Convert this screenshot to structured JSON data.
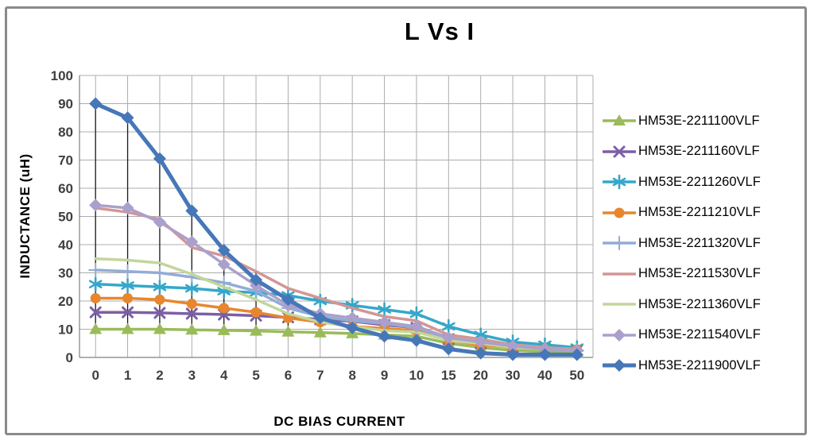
{
  "frame": {
    "border_color": "#8A8A8A",
    "background": "#FFFFFF"
  },
  "chart_data": {
    "type": "line",
    "title": "L Vs I",
    "xlabel": "DC BIAS CURRENT",
    "ylabel": "INDUCTANCE (uH)",
    "ylim": [
      0,
      100
    ],
    "y_ticks": [
      0,
      10,
      20,
      30,
      40,
      50,
      60,
      70,
      80,
      90,
      100
    ],
    "grid": "both",
    "high_low_lines": true,
    "legend_position": "right",
    "gridline_color": "#ACACAC",
    "axis_color": "#808080",
    "high_low_color": "#1A1A1A",
    "tick_label_color": "#3F3F3F",
    "categories": [
      "0",
      "1",
      "2",
      "3",
      "4",
      "5",
      "6",
      "7",
      "8",
      "9",
      "10",
      "15",
      "20",
      "30",
      "40",
      "50"
    ],
    "series": [
      {
        "name": "HM53E-2211100VLF",
        "color": "#9ABB59",
        "marker": "triangle",
        "line_width": 3.5,
        "values": [
          10,
          10,
          10,
          9.8,
          9.6,
          9.4,
          9.1,
          8.8,
          8.5,
          8,
          7.5,
          5,
          3.5,
          2.5,
          2,
          2
        ]
      },
      {
        "name": "HM53E-2211160VLF",
        "color": "#7C5FA6",
        "marker": "x",
        "line_width": 3.5,
        "values": [
          16,
          16,
          15.8,
          15.5,
          15.2,
          14.8,
          14.2,
          13.5,
          12.8,
          11.5,
          10.5,
          6.5,
          5,
          3.5,
          3,
          2.5
        ]
      },
      {
        "name": "HM53E-2211260VLF",
        "color": "#35A7C9",
        "marker": "asterisk",
        "line_width": 3.5,
        "values": [
          26,
          25.5,
          25,
          24.5,
          23.5,
          23,
          22,
          20,
          18.5,
          17,
          15.5,
          11,
          8,
          5.5,
          4.5,
          3.5
        ]
      },
      {
        "name": "HM53E-2211210VLF",
        "color": "#E8862E",
        "marker": "circle",
        "line_width": 3.5,
        "values": [
          21,
          21,
          20.5,
          19,
          17.5,
          16,
          14,
          12.5,
          11,
          10.3,
          9.5,
          6,
          4.5,
          3.5,
          3,
          2.8
        ]
      },
      {
        "name": "HM53E-2211320VLF",
        "color": "#92ACD5",
        "marker": "plus",
        "line_width": 3.5,
        "values": [
          31,
          30.5,
          30,
          28.5,
          26.5,
          23.5,
          17.5,
          14.5,
          13,
          12,
          10.5,
          6.5,
          5,
          3.5,
          3,
          2.5
        ]
      },
      {
        "name": "HM53E-2211530VLF",
        "color": "#D29694",
        "marker": "none",
        "line_width": 3.5,
        "values": [
          53,
          51.5,
          49,
          39,
          36,
          30.5,
          24.5,
          21,
          17.5,
          14.5,
          13,
          8,
          6.5,
          4.5,
          3.5,
          3
        ]
      },
      {
        "name": "HM53E-2211360VLF",
        "color": "#C3D69B",
        "marker": "none",
        "line_width": 3.5,
        "values": [
          35,
          34.5,
          33.5,
          29.5,
          25,
          20.5,
          15.5,
          12.5,
          11,
          9.5,
          9,
          6,
          5,
          3.5,
          3,
          2.5
        ]
      },
      {
        "name": "HM53E-2211540VLF",
        "color": "#ABA0CB",
        "marker": "diamond",
        "line_width": 3.5,
        "values": [
          54,
          53,
          48,
          41,
          33,
          25.5,
          18.5,
          15.5,
          14,
          12.5,
          11,
          7,
          5.5,
          4,
          3,
          2.5
        ]
      },
      {
        "name": "HM53E-2211900VLF",
        "color": "#4677B8",
        "marker": "diamond",
        "line_width": 5,
        "values": [
          90,
          85,
          70.5,
          52,
          38,
          27.5,
          20.5,
          14,
          10.5,
          7.5,
          6,
          3,
          1.5,
          1,
          1,
          1
        ]
      }
    ]
  }
}
